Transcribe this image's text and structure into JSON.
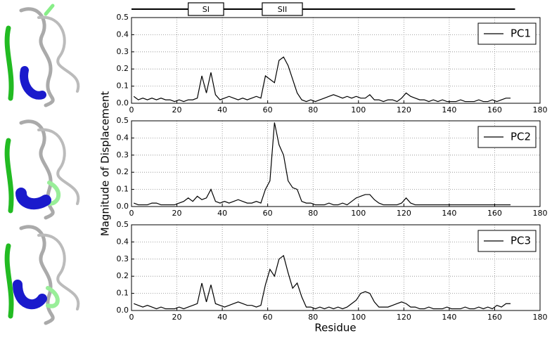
{
  "figure": {
    "ylabel": "Magnitude of Displacement",
    "xlabel": "Residue",
    "domain_bar": {
      "extent": [
        0,
        169
      ],
      "regions": [
        {
          "label": "SI",
          "start": 25,
          "end": 40.6
        },
        {
          "label": "SII",
          "start": 57.6,
          "end": 75.3
        }
      ]
    }
  },
  "chart_data": [
    {
      "type": "line",
      "xlim": [
        0,
        180
      ],
      "ylim": [
        0,
        0.5
      ],
      "xticks": [
        0,
        20,
        40,
        60,
        80,
        100,
        120,
        140,
        160,
        180
      ],
      "yticks": [
        {
          "value": 0,
          "label": "0.0"
        },
        0.1,
        0.2,
        0.3,
        0.4,
        0.5
      ],
      "grid": true,
      "legend": "upper right",
      "x": [
        1,
        3,
        5,
        7,
        9,
        11,
        13,
        15,
        17,
        19,
        21,
        23,
        25,
        27,
        29,
        31,
        33,
        35,
        37,
        39,
        41,
        43,
        45,
        47,
        49,
        51,
        53,
        55,
        57,
        59,
        61,
        63,
        65,
        67,
        69,
        71,
        73,
        75,
        77,
        79,
        81,
        83,
        85,
        87,
        89,
        91,
        93,
        95,
        97,
        99,
        101,
        103,
        105,
        107,
        109,
        111,
        113,
        115,
        117,
        119,
        121,
        123,
        125,
        127,
        129,
        131,
        133,
        135,
        137,
        139,
        141,
        143,
        145,
        147,
        149,
        151,
        153,
        155,
        157,
        159,
        161,
        163,
        165,
        167
      ],
      "series": [
        {
          "name": "PC1",
          "color": "#000000",
          "values": [
            0.04,
            0.02,
            0.03,
            0.02,
            0.03,
            0.02,
            0.03,
            0.02,
            0.02,
            0.01,
            0.02,
            0.01,
            0.02,
            0.02,
            0.03,
            0.16,
            0.06,
            0.18,
            0.05,
            0.02,
            0.03,
            0.04,
            0.03,
            0.02,
            0.03,
            0.02,
            0.03,
            0.04,
            0.03,
            0.16,
            0.14,
            0.12,
            0.25,
            0.27,
            0.22,
            0.14,
            0.06,
            0.02,
            0.01,
            0.02,
            0.01,
            0.02,
            0.03,
            0.04,
            0.05,
            0.04,
            0.03,
            0.04,
            0.03,
            0.04,
            0.03,
            0.03,
            0.05,
            0.02,
            0.02,
            0.01,
            0.02,
            0.02,
            0.01,
            0.03,
            0.06,
            0.04,
            0.03,
            0.02,
            0.02,
            0.01,
            0.02,
            0.01,
            0.02,
            0.01,
            0.01,
            0.01,
            0.02,
            0.01,
            0.01,
            0.01,
            0.02,
            0.01,
            0.01,
            0.02,
            0.01,
            0.02,
            0.03,
            0.03
          ]
        }
      ]
    },
    {
      "type": "line",
      "xlim": [
        0,
        180
      ],
      "ylim": [
        0,
        0.5
      ],
      "xticks": [
        0,
        20,
        40,
        60,
        80,
        100,
        120,
        140,
        160,
        180
      ],
      "yticks": [
        {
          "value": 0,
          "label": "0.0"
        },
        0.1,
        0.2,
        0.3,
        0.4,
        0.5
      ],
      "grid": true,
      "legend": "upper right",
      "x": [
        1,
        3,
        5,
        7,
        9,
        11,
        13,
        15,
        17,
        19,
        21,
        23,
        25,
        27,
        29,
        31,
        33,
        35,
        37,
        39,
        41,
        43,
        45,
        47,
        49,
        51,
        53,
        55,
        57,
        59,
        61,
        63,
        65,
        67,
        69,
        71,
        73,
        75,
        77,
        79,
        81,
        83,
        85,
        87,
        89,
        91,
        93,
        95,
        97,
        99,
        101,
        103,
        105,
        107,
        109,
        111,
        113,
        115,
        117,
        119,
        121,
        123,
        125,
        127,
        129,
        131,
        133,
        135,
        137,
        139,
        141,
        143,
        145,
        147,
        149,
        151,
        153,
        155,
        157,
        159,
        161,
        163,
        165,
        167
      ],
      "series": [
        {
          "name": "PC2",
          "color": "#000000",
          "values": [
            0.02,
            0.01,
            0.01,
            0.01,
            0.02,
            0.02,
            0.01,
            0.01,
            0.01,
            0.01,
            0.02,
            0.03,
            0.05,
            0.03,
            0.06,
            0.04,
            0.05,
            0.1,
            0.03,
            0.02,
            0.03,
            0.02,
            0.03,
            0.04,
            0.03,
            0.02,
            0.02,
            0.03,
            0.02,
            0.1,
            0.15,
            0.49,
            0.36,
            0.3,
            0.15,
            0.11,
            0.1,
            0.03,
            0.02,
            0.02,
            0.01,
            0.01,
            0.01,
            0.02,
            0.01,
            0.01,
            0.02,
            0.01,
            0.03,
            0.05,
            0.06,
            0.07,
            0.07,
            0.04,
            0.02,
            0.01,
            0.01,
            0.01,
            0.01,
            0.02,
            0.05,
            0.02,
            0.01,
            0.01,
            0.01,
            0.01,
            0.01,
            0.01,
            0.01,
            0.01,
            0.01,
            0.01,
            0.01,
            0.01,
            0.01,
            0.01,
            0.01,
            0.01,
            0.01,
            0.01,
            0.01,
            0.01,
            0.01,
            0.01
          ]
        }
      ]
    },
    {
      "type": "line",
      "xlim": [
        0,
        180
      ],
      "ylim": [
        0,
        0.5
      ],
      "xticks": [
        0,
        20,
        40,
        60,
        80,
        100,
        120,
        140,
        160,
        180
      ],
      "yticks": [
        {
          "value": 0,
          "label": "0.0"
        },
        0.1,
        0.2,
        0.3,
        0.4,
        0.5
      ],
      "grid": true,
      "legend": "upper right",
      "x": [
        1,
        3,
        5,
        7,
        9,
        11,
        13,
        15,
        17,
        19,
        21,
        23,
        25,
        27,
        29,
        31,
        33,
        35,
        37,
        39,
        41,
        43,
        45,
        47,
        49,
        51,
        53,
        55,
        57,
        59,
        61,
        63,
        65,
        67,
        69,
        71,
        73,
        75,
        77,
        79,
        81,
        83,
        85,
        87,
        89,
        91,
        93,
        95,
        97,
        99,
        101,
        103,
        105,
        107,
        109,
        111,
        113,
        115,
        117,
        119,
        121,
        123,
        125,
        127,
        129,
        131,
        133,
        135,
        137,
        139,
        141,
        143,
        145,
        147,
        149,
        151,
        153,
        155,
        157,
        159,
        161,
        163,
        165,
        167
      ],
      "series": [
        {
          "name": "PC3",
          "color": "#000000",
          "values": [
            0.04,
            0.03,
            0.02,
            0.03,
            0.02,
            0.01,
            0.02,
            0.01,
            0.01,
            0.01,
            0.02,
            0.01,
            0.02,
            0.03,
            0.04,
            0.16,
            0.05,
            0.15,
            0.04,
            0.03,
            0.02,
            0.03,
            0.04,
            0.05,
            0.04,
            0.03,
            0.03,
            0.02,
            0.03,
            0.15,
            0.24,
            0.2,
            0.3,
            0.32,
            0.22,
            0.13,
            0.16,
            0.08,
            0.02,
            0.02,
            0.01,
            0.02,
            0.01,
            0.02,
            0.01,
            0.02,
            0.01,
            0.02,
            0.04,
            0.06,
            0.1,
            0.11,
            0.1,
            0.05,
            0.02,
            0.02,
            0.02,
            0.03,
            0.04,
            0.05,
            0.04,
            0.02,
            0.02,
            0.01,
            0.01,
            0.02,
            0.01,
            0.01,
            0.01,
            0.02,
            0.01,
            0.01,
            0.01,
            0.02,
            0.01,
            0.01,
            0.02,
            0.01,
            0.02,
            0.01,
            0.03,
            0.02,
            0.04,
            0.04
          ]
        }
      ]
    }
  ]
}
